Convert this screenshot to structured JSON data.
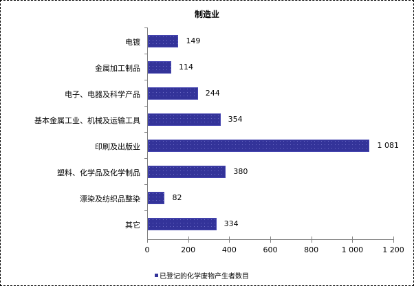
{
  "chart_data": {
    "type": "bar",
    "orientation": "horizontal",
    "title": "制造业",
    "categories": [
      "电镀",
      "金属加工制品",
      "电子、电器及科学产品",
      "基本金属工业、机械及运输工具",
      "印刷及出版业",
      "塑料、化学品及化学制品",
      "漂染及纺织品整染",
      "其它"
    ],
    "values": [
      149,
      114,
      244,
      354,
      1081,
      380,
      82,
      334
    ],
    "value_labels": [
      "149",
      "114",
      "244",
      "354",
      "1 081",
      "380",
      "82",
      "334"
    ],
    "series": [
      {
        "name": "已登记的化学废物产生者数目",
        "values": [
          149,
          114,
          244,
          354,
          1081,
          380,
          82,
          334
        ],
        "color": "#333399"
      }
    ],
    "xlabel": "",
    "ylabel": "",
    "xlim": [
      0,
      1200
    ],
    "x_ticks": [
      0,
      200,
      400,
      600,
      800,
      1000,
      1200
    ],
    "x_tick_labels": [
      "0",
      "200",
      "400",
      "600",
      "800",
      "1 000",
      "1 200"
    ],
    "grid": false,
    "legend_position": "bottom-left"
  },
  "legend": {
    "label": "已登记的化学废物产生者数目"
  }
}
